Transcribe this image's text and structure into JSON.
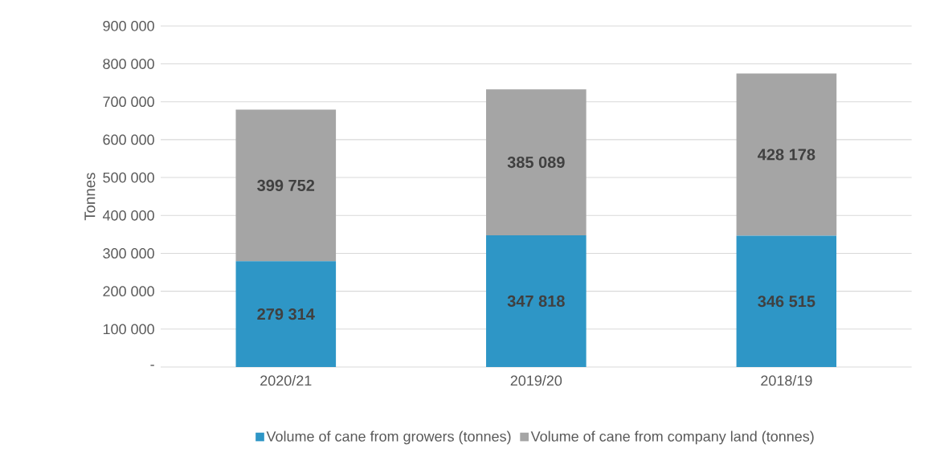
{
  "chart_data": {
    "type": "bar",
    "stacked": true,
    "categories": [
      "2020/21",
      "2019/20",
      "2018/19"
    ],
    "ylabel": "Tonnes",
    "series": [
      {
        "name": "Volume of cane from growers (tonnes)",
        "color": "#2e96c6",
        "values": [
          279314,
          347818,
          346515
        ],
        "value_labels": [
          "279 314",
          "347 818",
          "346 515"
        ]
      },
      {
        "name": "Volume of cane from company land (tonnes)",
        "color": "#a5a5a5",
        "values": [
          399752,
          385089,
          428178
        ],
        "value_labels": [
          "399 752",
          "385 089",
          "428 178"
        ]
      }
    ],
    "ylim": [
      0,
      900000
    ],
    "yticks": [
      {
        "value": 0,
        "label": "-"
      },
      {
        "value": 100000,
        "label": "100 000"
      },
      {
        "value": 200000,
        "label": "200 000"
      },
      {
        "value": 300000,
        "label": "300 000"
      },
      {
        "value": 400000,
        "label": "400 000"
      },
      {
        "value": 500000,
        "label": "500 000"
      },
      {
        "value": 600000,
        "label": "600 000"
      },
      {
        "value": 700000,
        "label": "700 000"
      },
      {
        "value": 800000,
        "label": "800 000"
      },
      {
        "value": 900000,
        "label": "900 000"
      }
    ],
    "grid": "y",
    "legend": "bottom"
  }
}
